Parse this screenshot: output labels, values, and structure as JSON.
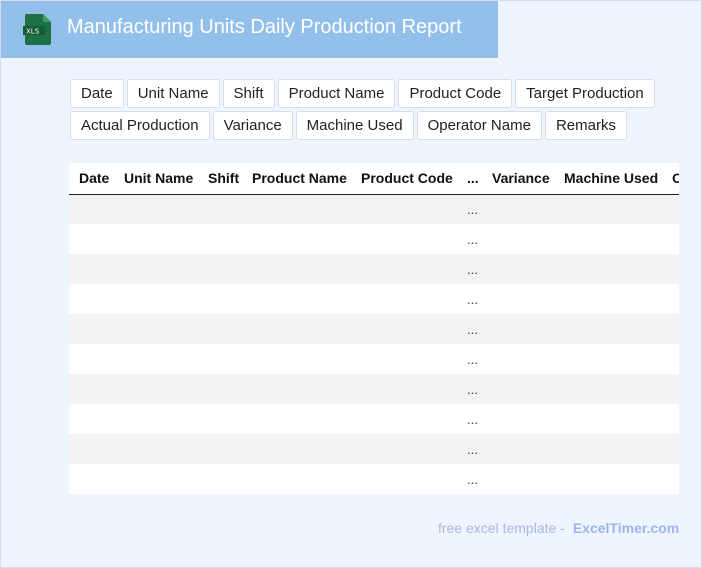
{
  "header": {
    "title": "Manufacturing Units Daily Production Report",
    "icon": "xls-file-icon",
    "icon_label": "XLS"
  },
  "chips": [
    "Date",
    "Unit Name",
    "Shift",
    "Product Name",
    "Product Code",
    "Target Production",
    "Actual Production",
    "Variance",
    "Machine Used",
    "Operator Name",
    "Remarks"
  ],
  "table": {
    "columns": [
      "Date",
      "Unit Name",
      "Shift",
      "Product Name",
      "Product Code",
      "...",
      "Variance",
      "Machine Used",
      "Operator Name"
    ],
    "ellipsis": "...",
    "row_count": 10
  },
  "footer": {
    "text": "free excel template -",
    "brand": "ExcelTimer.com"
  }
}
